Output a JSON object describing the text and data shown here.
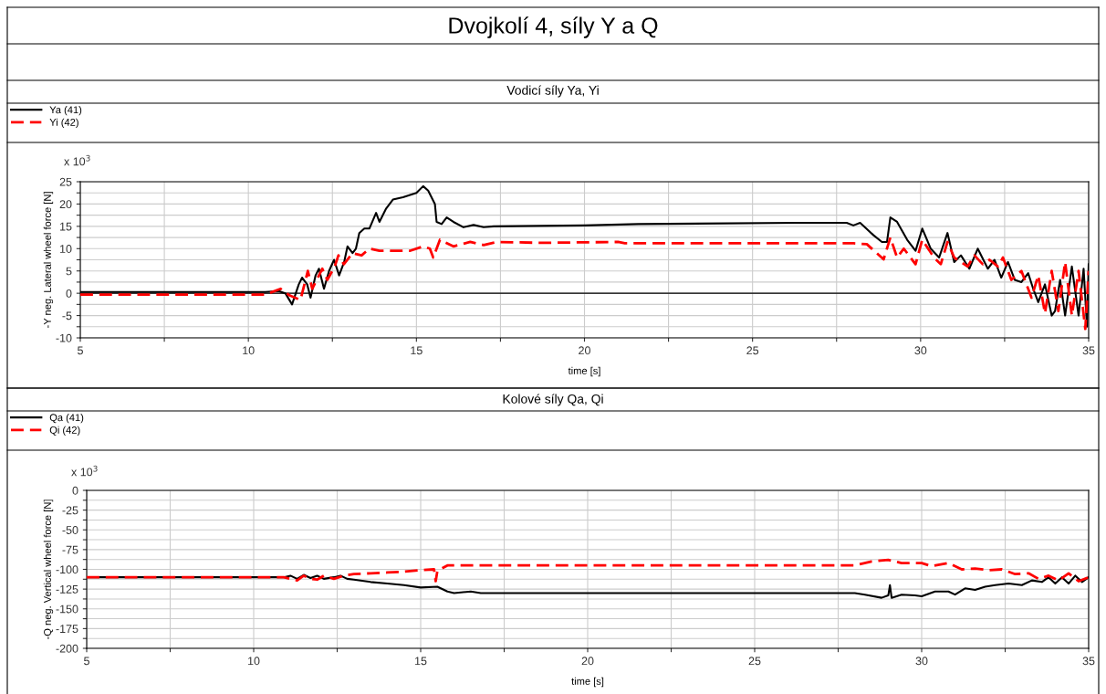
{
  "chart_data": [
    {
      "type": "line",
      "title": "Dvojkolí 4, síly Y a Q",
      "subtitle": "Vodicí síly Ya, Yi",
      "xlabel": "time [s]",
      "ylabel": "-Y neg. Lateral wheel force [N]",
      "annotations": [
        "x 10$^{3}$"
      ],
      "legend": "top left",
      "grid": true,
      "xlim": [
        5,
        35
      ],
      "xticks": [
        5,
        {
          "value": 7.5,
          "label": null
        },
        10,
        {
          "value": 12.5,
          "label": null
        },
        15,
        {
          "value": 17.5,
          "label": null
        },
        20,
        {
          "value": 22.5,
          "label": null
        },
        25,
        {
          "value": 27.5,
          "label": null
        },
        30,
        {
          "value": 32.5,
          "label": null
        },
        35
      ],
      "ylim": [
        -10,
        25
      ],
      "yticks": [
        -10,
        {
          "value": -7.5,
          "label": null
        },
        -5,
        {
          "value": -2.5,
          "label": null
        },
        0,
        {
          "value": 2.5,
          "label": null
        },
        5,
        {
          "value": 7.5,
          "label": null
        },
        10,
        {
          "value": 12.5,
          "label": null
        },
        15,
        {
          "value": 17.5,
          "label": null
        },
        20,
        {
          "value": 22.5,
          "label": null
        },
        25
      ],
      "ref_lines": [
        {
          "axis": "y",
          "value": 0,
          "color": "#000000"
        }
      ],
      "series": [
        {
          "name": "Ya (41)",
          "color": "#000000",
          "line_style": "solid",
          "x": [
            5,
            10.5,
            10.9,
            11.1,
            11.3,
            11.5,
            11.6,
            11.75,
            11.85,
            12.0,
            12.1,
            12.25,
            12.4,
            12.55,
            12.7,
            12.85,
            12.95,
            13.1,
            13.2,
            13.3,
            13.45,
            13.6,
            13.8,
            13.9,
            14.1,
            14.3,
            14.6,
            15.0,
            15.2,
            15.35,
            15.55,
            15.6,
            15.75,
            15.9,
            16.1,
            16.4,
            16.7,
            17.0,
            17.3,
            20,
            21.6,
            26.3,
            27.8,
            28.0,
            28.2,
            28.6,
            28.85,
            29.0,
            29.1,
            29.3,
            29.6,
            29.85,
            30.05,
            30.3,
            30.55,
            30.8,
            31.0,
            31.2,
            31.45,
            31.7,
            32.0,
            32.2,
            32.4,
            32.6,
            32.8,
            33.0,
            33.2,
            33.35,
            33.5,
            33.7,
            33.9,
            34.0,
            34.15,
            34.3,
            34.5,
            34.7,
            34.85,
            34.95,
            35
          ],
          "values": [
            0.3,
            0.3,
            0.5,
            0,
            -2.5,
            2,
            3.5,
            2,
            -1,
            4,
            5.5,
            1,
            5,
            7.5,
            4,
            7,
            10.5,
            9,
            10,
            13.5,
            14.5,
            14.5,
            18,
            16,
            19,
            21,
            21.5,
            22.5,
            24,
            23,
            20,
            16,
            15.5,
            17,
            16,
            14.8,
            15.3,
            14.8,
            15,
            15.2,
            15.5,
            15.8,
            15.8,
            15.2,
            15.8,
            13,
            11.5,
            11.5,
            17,
            16,
            12,
            9.5,
            14.5,
            10,
            8,
            13.5,
            7,
            8.5,
            5.5,
            10,
            5.5,
            7.5,
            3.5,
            7,
            3,
            2.5,
            4.5,
            1,
            -2,
            2,
            -5,
            -4,
            3,
            -5,
            6,
            -5,
            5.5,
            -7.5,
            6.5
          ]
        },
        {
          "name": "Yi (42)",
          "color": "#ff0000",
          "line_style": "dashed",
          "x": [
            5,
            10.5,
            10.96,
            11.23,
            11.55,
            11.77,
            11.9,
            12.2,
            12.35,
            12.57,
            12.68,
            12.84,
            13.1,
            13.37,
            13.6,
            13.9,
            14.3,
            14.8,
            15.2,
            15.4,
            15.5,
            15.7,
            16.1,
            16.6,
            17.0,
            17.4,
            18.7,
            21.0,
            21.2,
            28.0,
            28.4,
            28.9,
            29.1,
            29.3,
            29.5,
            29.85,
            30.05,
            30.4,
            30.6,
            30.8,
            31.0,
            31.2,
            31.4,
            31.6,
            31.85,
            32.05,
            32.3,
            32.45,
            32.7,
            33.0,
            33.3,
            33.5,
            33.7,
            33.9,
            34.1,
            34.3,
            34.5,
            34.7,
            34.9,
            35
          ],
          "values": [
            -0.3,
            -0.3,
            1,
            -0.5,
            -1.5,
            5,
            1,
            5.5,
            3,
            6,
            8.5,
            6.5,
            9,
            8.5,
            10,
            9.5,
            9.5,
            9.5,
            10.5,
            10,
            8,
            12,
            10.5,
            11.5,
            10.8,
            11.5,
            11.3,
            11.5,
            11.2,
            11.2,
            11,
            7.6,
            12.5,
            8,
            10,
            6.5,
            12,
            8,
            6.5,
            11.5,
            8,
            7,
            6,
            8.5,
            6.5,
            7.5,
            6,
            8,
            3,
            5,
            -1,
            4,
            -4.5,
            5,
            -4,
            7,
            -5,
            5,
            -8,
            5
          ]
        }
      ]
    },
    {
      "type": "line",
      "subtitle": "Kolové síly Qa, Qi",
      "xlabel": "time [s]",
      "ylabel": "-Q neg. Vertical wheel force [N]",
      "annotations": [
        "x 10$^{3}$"
      ],
      "legend": "top left",
      "grid": true,
      "xlim": [
        5,
        35
      ],
      "xticks": [
        5,
        {
          "value": 7.5,
          "label": null
        },
        10,
        {
          "value": 12.5,
          "label": null
        },
        15,
        {
          "value": 17.5,
          "label": null
        },
        20,
        {
          "value": 22.5,
          "label": null
        },
        25,
        {
          "value": 27.5,
          "label": null
        },
        30,
        {
          "value": 32.5,
          "label": null
        },
        35
      ],
      "ylim": [
        -200,
        0
      ],
      "yticks": [
        -200,
        {
          "value": -187.5,
          "label": null
        },
        -175,
        {
          "value": -162.5,
          "label": null
        },
        -150,
        {
          "value": -137.5,
          "label": null
        },
        -125,
        {
          "value": -112.5,
          "label": null
        },
        -100,
        {
          "value": -87.5,
          "label": null
        },
        -75,
        {
          "value": -62.5,
          "label": null
        },
        -50,
        {
          "value": -37.5,
          "label": null
        },
        -25,
        {
          "value": -12.5,
          "label": null
        },
        0
      ],
      "series": [
        {
          "name": "Qa (41)",
          "color": "#000000",
          "line_style": "solid",
          "x": [
            5,
            10.9,
            11.1,
            11.3,
            11.5,
            11.7,
            11.9,
            12.1,
            12.4,
            12.6,
            12.8,
            13.0,
            13.5,
            14.0,
            14.5,
            15.0,
            15.5,
            15.8,
            16.0,
            16.5,
            16.8,
            20,
            28.0,
            28.3,
            28.8,
            29.0,
            29.05,
            29.1,
            29.4,
            29.8,
            30.0,
            30.4,
            30.8,
            31.0,
            31.3,
            31.6,
            31.9,
            32.2,
            32.6,
            33.0,
            33.3,
            33.6,
            33.8,
            34.0,
            34.2,
            34.4,
            34.6,
            34.8,
            35
          ],
          "values": [
            -110,
            -110,
            -108,
            -112,
            -107,
            -111,
            -108,
            -112,
            -110,
            -108,
            -112,
            -113,
            -116,
            -118,
            -120,
            -123,
            -122,
            -128,
            -130,
            -128,
            -130,
            -130,
            -130,
            -132,
            -136,
            -133,
            -120,
            -136,
            -132,
            -133,
            -134,
            -128,
            -128,
            -132,
            -124,
            -126,
            -122,
            -120,
            -118,
            -120,
            -114,
            -116,
            -110,
            -118,
            -110,
            -118,
            -108,
            -116,
            -110
          ]
        },
        {
          "name": "Qi (42)",
          "color": "#ff0000",
          "line_style": "dashed",
          "x": [
            5,
            10.9,
            11.1,
            11.3,
            11.5,
            11.7,
            11.9,
            12.1,
            12.4,
            12.7,
            13.0,
            13.5,
            14.0,
            14.5,
            15.0,
            15.4,
            15.45,
            15.5,
            15.8,
            20,
            28.0,
            28.5,
            29.0,
            29.4,
            29.7,
            30.0,
            30.3,
            30.8,
            31.2,
            31.6,
            32.0,
            32.4,
            32.8,
            33.2,
            33.5,
            33.8,
            34.1,
            34.4,
            34.7,
            35
          ],
          "values": [
            -110,
            -110,
            -112,
            -114,
            -108,
            -112,
            -113,
            -108,
            -112,
            -108,
            -106,
            -105,
            -104,
            -103,
            -101,
            -100,
            -115,
            -102,
            -95,
            -95,
            -95,
            -90,
            -88,
            -92,
            -92,
            -92,
            -96,
            -92,
            -100,
            -99,
            -101,
            -100,
            -106,
            -105,
            -112,
            -108,
            -114,
            -105,
            -115,
            -110
          ]
        }
      ]
    }
  ]
}
